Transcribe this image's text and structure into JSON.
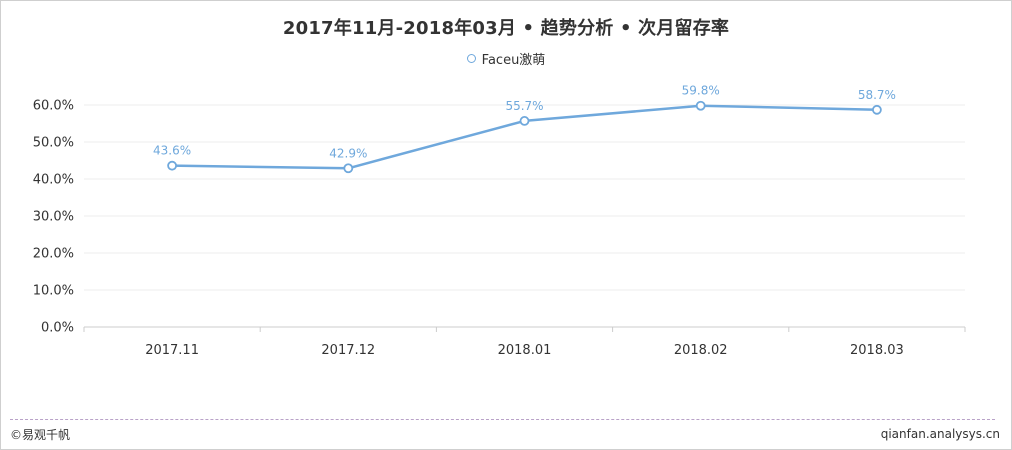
{
  "header": {
    "title": "2017年11月-2018年03月 • 趋势分析 • 次月留存率"
  },
  "footer": {
    "source": "©易观千帆",
    "site": "qianfan.analysys.cn"
  },
  "colors": {
    "series": "#6fa8dc",
    "label": "#6fa8dc",
    "grid": "#eeeeee",
    "axis": "#cccccc"
  },
  "chart_data": {
    "type": "line",
    "title": "2017年11月-2018年03月 • 趋势分析 • 次月留存率",
    "categories": [
      "2017.11",
      "2017.12",
      "2018.01",
      "2018.02",
      "2018.03"
    ],
    "series": [
      {
        "name": "Faceu激萌",
        "values": [
          43.6,
          42.9,
          55.7,
          59.8,
          58.7
        ],
        "labels": [
          "43.6%",
          "42.9%",
          "55.7%",
          "59.8%",
          "58.7%"
        ]
      }
    ],
    "yticks": [
      "0.0%",
      "10.0%",
      "20.0%",
      "30.0%",
      "40.0%",
      "50.0%",
      "60.0%"
    ],
    "ylim": [
      0,
      60
    ],
    "xlabel": "",
    "ylabel": "",
    "legend": "top-center",
    "grid": true
  }
}
